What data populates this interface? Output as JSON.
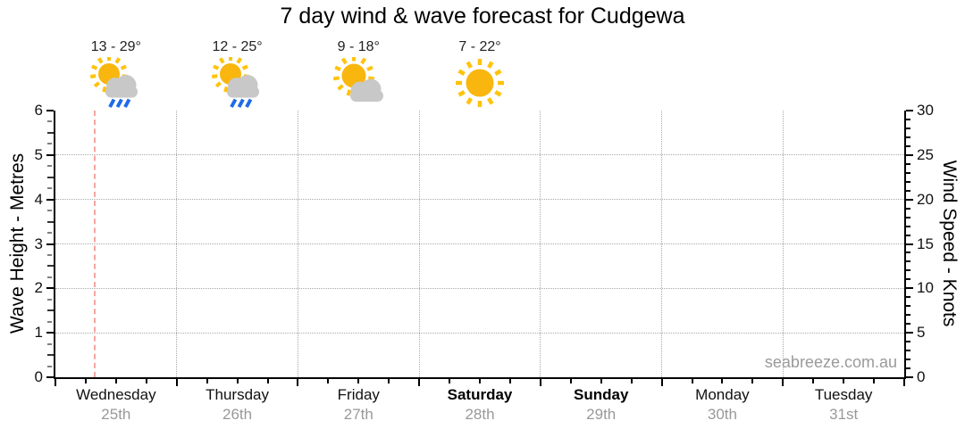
{
  "title": "7 day wind & wave forecast for Cudgewa",
  "watermark": "seabreeze.com.au",
  "colors": {
    "sun": "#f8b60f",
    "sun_rays": "#ffc30b",
    "cloud": "#c8c8c8",
    "rain": "#1e6ae8",
    "grid": "#a9a9a9",
    "axis": "#000000",
    "date_text": "#999999",
    "now_line": "#f4a6a0",
    "watermark_text": "#9a9a9a"
  },
  "chart_data": {
    "type": "line",
    "title": "7 day wind & wave forecast for Cudgewa",
    "ylabel_left": "Wave Height - Metres",
    "ylabel_right": "Wind Speed - Knots",
    "y_left": {
      "min": 0,
      "max": 6,
      "major_step": 1,
      "minor_step": 0.25,
      "tick_labels": [
        "0",
        "1",
        "2",
        "3",
        "4",
        "5",
        "6"
      ]
    },
    "y_right": {
      "min": 0,
      "max": 30,
      "major_step": 5,
      "minor_step": 1,
      "tick_labels": [
        "0",
        "5",
        "10",
        "15",
        "20",
        "25",
        "30"
      ]
    },
    "grid": true,
    "legend": null,
    "series": [],
    "x_minor_divisions_per_day": 4,
    "days": [
      {
        "name": "Wednesday",
        "date": "25th",
        "weekend": false,
        "temp": "13 - 29°",
        "icon": "sun-cloud-rain"
      },
      {
        "name": "Thursday",
        "date": "26th",
        "weekend": false,
        "temp": "12 - 25°",
        "icon": "sun-cloud-rain"
      },
      {
        "name": "Friday",
        "date": "27th",
        "weekend": false,
        "temp": "9 - 18°",
        "icon": "sun-cloud"
      },
      {
        "name": "Saturday",
        "date": "28th",
        "weekend": true,
        "temp": "7 - 22°",
        "icon": "sun"
      },
      {
        "name": "Sunday",
        "date": "29th",
        "weekend": true,
        "temp": null,
        "icon": null
      },
      {
        "name": "Monday",
        "date": "30th",
        "weekend": false,
        "temp": null,
        "icon": null
      },
      {
        "name": "Tuesday",
        "date": "31st",
        "weekend": false,
        "temp": null,
        "icon": null
      }
    ],
    "now_marker": {
      "day_index": 0,
      "day_fraction": 0.32
    }
  }
}
